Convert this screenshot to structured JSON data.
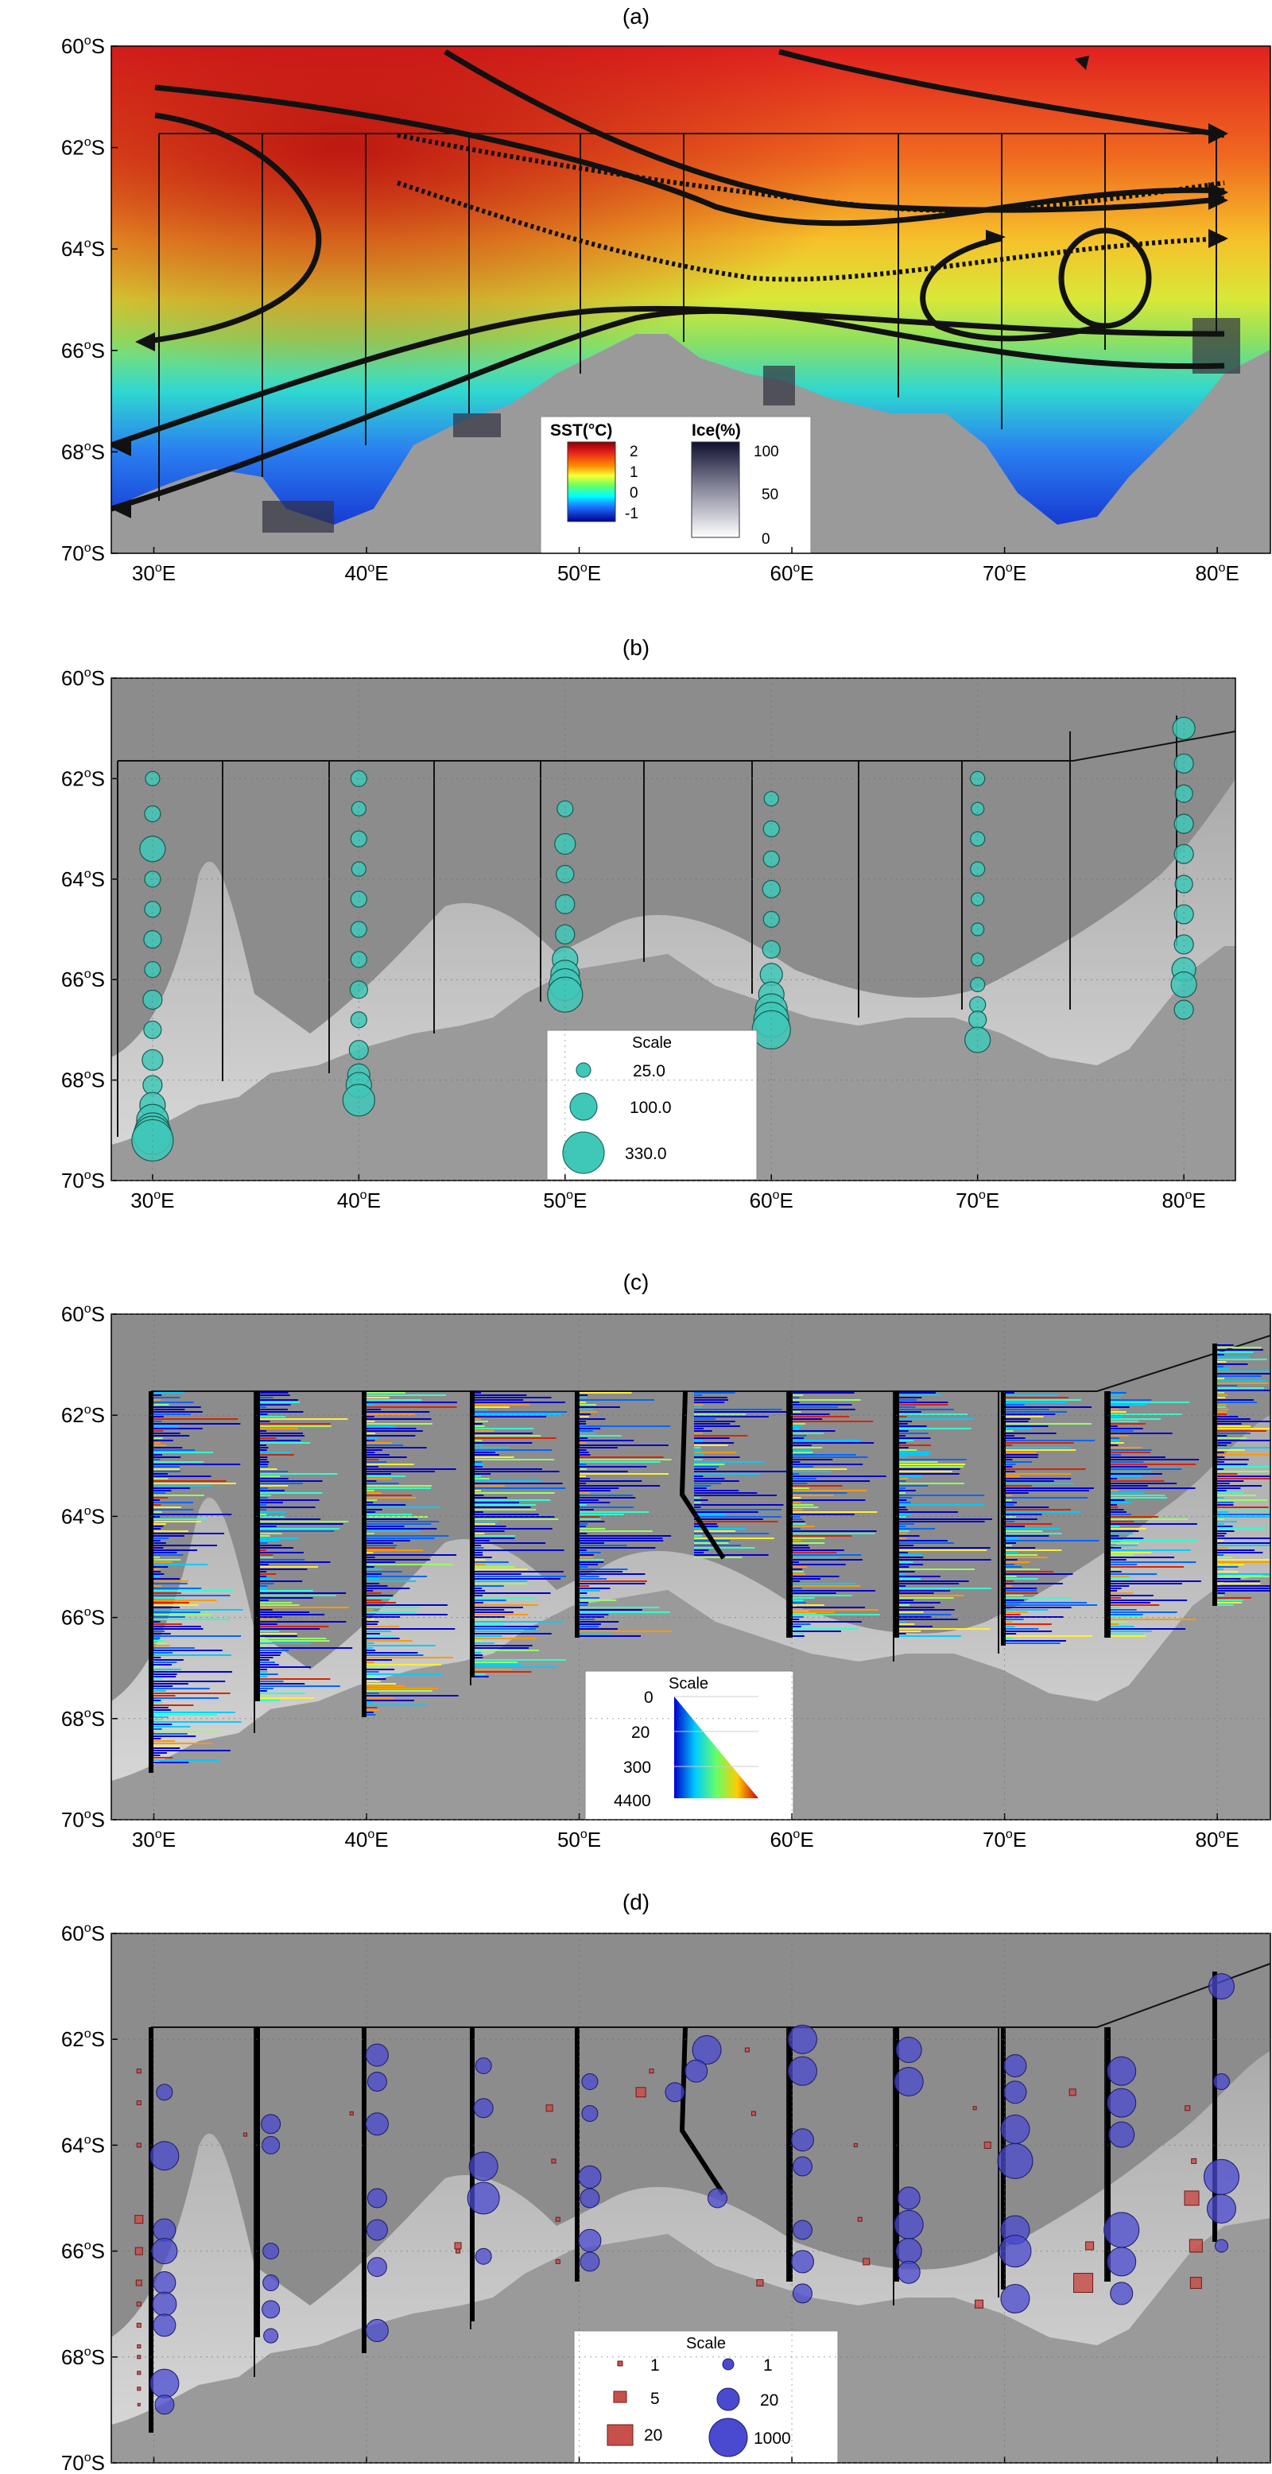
{
  "colors": {
    "ocean_grey": "#8c8c8c",
    "shelf_light": "#d8d8d8",
    "land_grey": "#9a9a9a",
    "circle_teal": "#3fc8b8",
    "circle_blue": "#4a4ad0",
    "square_red": "#c8504a",
    "track_line": "#111111"
  },
  "axes": {
    "x_ticks": [
      "30",
      "40",
      "50",
      "60",
      "70",
      "80"
    ],
    "y_ticks": [
      "60",
      "62",
      "64",
      "66",
      "68",
      "70"
    ],
    "x_suffix": "E",
    "y_suffix": "S",
    "deg": "o"
  },
  "panels": [
    {
      "tag": "(a)",
      "legend": {
        "sst_title": "SST(°C)",
        "sst_ticks": [
          "2",
          "1",
          "0",
          "-1"
        ],
        "ice_title": "Ice(%)",
        "ice_ticks": [
          "100",
          "50",
          "0"
        ]
      }
    },
    {
      "tag": "(b)",
      "legend": {
        "title": "Scale",
        "items": [
          "25.0",
          "100.0",
          "330.0"
        ]
      },
      "stations": [
        {
          "lon": 30,
          "lats": [
            62,
            62.7,
            63.4,
            64.0,
            64.6,
            65.2,
            65.8,
            66.4,
            67.0,
            67.6,
            68.1,
            68.5,
            68.8,
            69.0,
            69.1,
            69.2
          ],
          "r": [
            9,
            10,
            16,
            10,
            10,
            11,
            10,
            12,
            11,
            13,
            12,
            16,
            20,
            22,
            24,
            26
          ]
        },
        {
          "lon": 40,
          "lats": [
            62,
            62.6,
            63.2,
            63.8,
            64.4,
            65.0,
            65.6,
            66.2,
            66.8,
            67.4,
            67.9,
            68.1,
            68.4
          ],
          "r": [
            10,
            9,
            10,
            9,
            10,
            10,
            10,
            11,
            10,
            12,
            14,
            16,
            20
          ]
        },
        {
          "lon": 50,
          "lats": [
            62.6,
            63.3,
            63.9,
            64.5,
            65.1,
            65.6,
            65.9,
            66.1,
            66.3
          ],
          "r": [
            10,
            13,
            11,
            12,
            12,
            16,
            18,
            20,
            22
          ]
        },
        {
          "lon": 60,
          "lats": [
            62.4,
            63.0,
            63.6,
            64.2,
            64.8,
            65.4,
            65.9,
            66.3,
            66.6,
            66.8,
            67.0
          ],
          "r": [
            9,
            10,
            10,
            11,
            10,
            11,
            14,
            16,
            20,
            22,
            24
          ]
        },
        {
          "lon": 70,
          "lats": [
            62.0,
            62.6,
            63.2,
            63.8,
            64.4,
            65.0,
            65.6,
            66.1,
            66.5,
            66.8,
            67.2
          ],
          "r": [
            9,
            8,
            9,
            9,
            8,
            8,
            8,
            9,
            10,
            11,
            16
          ]
        },
        {
          "lon": 80,
          "lats": [
            61.0,
            61.7,
            62.3,
            62.9,
            63.5,
            64.1,
            64.7,
            65.3,
            65.8,
            66.1,
            66.6
          ],
          "r": [
            14,
            12,
            11,
            12,
            12,
            11,
            12,
            12,
            15,
            16,
            12
          ]
        }
      ]
    },
    {
      "tag": "(c)",
      "legend": {
        "title": "Scale",
        "items": [
          "0",
          "20",
          "300",
          "4400"
        ]
      }
    },
    {
      "tag": "(d)",
      "legend": {
        "title": "Scale",
        "square_items": [
          "1",
          "5",
          "20"
        ],
        "circle_items": [
          "1",
          "20",
          "1000"
        ]
      },
      "circles": [
        {
          "lon": 30.5,
          "lat": 63.0,
          "r": 10
        },
        {
          "lon": 30.5,
          "lat": 64.2,
          "r": 18
        },
        {
          "lon": 30.5,
          "lat": 65.6,
          "r": 14
        },
        {
          "lon": 30.5,
          "lat": 66.0,
          "r": 16
        },
        {
          "lon": 30.5,
          "lat": 66.6,
          "r": 14
        },
        {
          "lon": 30.5,
          "lat": 67.0,
          "r": 15
        },
        {
          "lon": 30.5,
          "lat": 67.4,
          "r": 14
        },
        {
          "lon": 30.5,
          "lat": 68.5,
          "r": 18
        },
        {
          "lon": 30.5,
          "lat": 68.9,
          "r": 12
        },
        {
          "lon": 35.5,
          "lat": 63.6,
          "r": 12
        },
        {
          "lon": 35.5,
          "lat": 64.0,
          "r": 11
        },
        {
          "lon": 35.5,
          "lat": 66.0,
          "r": 10
        },
        {
          "lon": 35.5,
          "lat": 66.6,
          "r": 10
        },
        {
          "lon": 35.5,
          "lat": 67.1,
          "r": 11
        },
        {
          "lon": 35.5,
          "lat": 67.6,
          "r": 9
        },
        {
          "lon": 40.5,
          "lat": 62.3,
          "r": 14
        },
        {
          "lon": 40.5,
          "lat": 62.8,
          "r": 12
        },
        {
          "lon": 40.5,
          "lat": 63.6,
          "r": 14
        },
        {
          "lon": 40.5,
          "lat": 65.0,
          "r": 12
        },
        {
          "lon": 40.5,
          "lat": 65.6,
          "r": 13
        },
        {
          "lon": 40.5,
          "lat": 66.3,
          "r": 12
        },
        {
          "lon": 40.5,
          "lat": 67.5,
          "r": 14
        },
        {
          "lon": 45.5,
          "lat": 62.5,
          "r": 10
        },
        {
          "lon": 45.5,
          "lat": 63.3,
          "r": 12
        },
        {
          "lon": 45.5,
          "lat": 64.4,
          "r": 18
        },
        {
          "lon": 45.5,
          "lat": 65.0,
          "r": 20
        },
        {
          "lon": 45.5,
          "lat": 66.1,
          "r": 10
        },
        {
          "lon": 50.5,
          "lat": 62.8,
          "r": 10
        },
        {
          "lon": 50.5,
          "lat": 63.4,
          "r": 10
        },
        {
          "lon": 50.5,
          "lat": 64.6,
          "r": 14
        },
        {
          "lon": 50.5,
          "lat": 65.0,
          "r": 12
        },
        {
          "lon": 50.5,
          "lat": 65.8,
          "r": 14
        },
        {
          "lon": 50.5,
          "lat": 66.2,
          "r": 12
        },
        {
          "lon": 56.0,
          "lat": 62.2,
          "r": 18
        },
        {
          "lon": 55.5,
          "lat": 62.6,
          "r": 14
        },
        {
          "lon": 54.5,
          "lat": 63.0,
          "r": 12
        },
        {
          "lon": 56.5,
          "lat": 65.0,
          "r": 12
        },
        {
          "lon": 60.5,
          "lat": 62.0,
          "r": 18
        },
        {
          "lon": 60.5,
          "lat": 62.6,
          "r": 18
        },
        {
          "lon": 60.5,
          "lat": 63.9,
          "r": 14
        },
        {
          "lon": 60.5,
          "lat": 64.4,
          "r": 12
        },
        {
          "lon": 60.5,
          "lat": 65.6,
          "r": 12
        },
        {
          "lon": 60.5,
          "lat": 66.2,
          "r": 14
        },
        {
          "lon": 60.5,
          "lat": 66.8,
          "r": 12
        },
        {
          "lon": 65.5,
          "lat": 62.2,
          "r": 16
        },
        {
          "lon": 65.5,
          "lat": 62.8,
          "r": 18
        },
        {
          "lon": 65.5,
          "lat": 65.0,
          "r": 14
        },
        {
          "lon": 65.5,
          "lat": 65.5,
          "r": 18
        },
        {
          "lon": 65.5,
          "lat": 66.0,
          "r": 16
        },
        {
          "lon": 65.5,
          "lat": 66.4,
          "r": 14
        },
        {
          "lon": 70.5,
          "lat": 62.5,
          "r": 14
        },
        {
          "lon": 70.5,
          "lat": 63.0,
          "r": 14
        },
        {
          "lon": 70.5,
          "lat": 63.7,
          "r": 18
        },
        {
          "lon": 70.5,
          "lat": 64.3,
          "r": 22
        },
        {
          "lon": 70.5,
          "lat": 65.6,
          "r": 18
        },
        {
          "lon": 70.5,
          "lat": 66.0,
          "r": 20
        },
        {
          "lon": 70.5,
          "lat": 66.9,
          "r": 18
        },
        {
          "lon": 75.5,
          "lat": 62.6,
          "r": 18
        },
        {
          "lon": 75.5,
          "lat": 63.2,
          "r": 18
        },
        {
          "lon": 75.5,
          "lat": 63.8,
          "r": 16
        },
        {
          "lon": 75.5,
          "lat": 65.6,
          "r": 22
        },
        {
          "lon": 75.5,
          "lat": 66.2,
          "r": 18
        },
        {
          "lon": 75.5,
          "lat": 66.8,
          "r": 14
        },
        {
          "lon": 80.2,
          "lat": 61.0,
          "r": 16
        },
        {
          "lon": 80.2,
          "lat": 62.8,
          "r": 10
        },
        {
          "lon": 80.2,
          "lat": 64.6,
          "r": 22
        },
        {
          "lon": 80.2,
          "lat": 65.2,
          "r": 18
        },
        {
          "lon": 80.2,
          "lat": 65.9,
          "r": 8
        }
      ],
      "squares": [
        {
          "lon": 29.3,
          "lat": 62.6,
          "s": 5
        },
        {
          "lon": 29.3,
          "lat": 63.2,
          "s": 5
        },
        {
          "lon": 29.3,
          "lat": 64.0,
          "s": 5
        },
        {
          "lon": 29.3,
          "lat": 65.4,
          "s": 10
        },
        {
          "lon": 29.3,
          "lat": 66.0,
          "s": 9
        },
        {
          "lon": 29.3,
          "lat": 66.6,
          "s": 7
        },
        {
          "lon": 29.3,
          "lat": 67.0,
          "s": 5
        },
        {
          "lon": 29.3,
          "lat": 67.4,
          "s": 5
        },
        {
          "lon": 29.3,
          "lat": 67.8,
          "s": 4
        },
        {
          "lon": 29.3,
          "lat": 68.0,
          "s": 4
        },
        {
          "lon": 29.3,
          "lat": 68.3,
          "s": 4
        },
        {
          "lon": 29.3,
          "lat": 68.6,
          "s": 4
        },
        {
          "lon": 29.3,
          "lat": 68.9,
          "s": 3
        },
        {
          "lon": 34.3,
          "lat": 63.8,
          "s": 4
        },
        {
          "lon": 39.3,
          "lat": 63.4,
          "s": 4
        },
        {
          "lon": 44.3,
          "lat": 65.9,
          "s": 8
        },
        {
          "lon": 44.3,
          "lat": 66.0,
          "s": 5
        },
        {
          "lon": 48.6,
          "lat": 63.3,
          "s": 8
        },
        {
          "lon": 48.8,
          "lat": 64.3,
          "s": 5
        },
        {
          "lon": 49.0,
          "lat": 65.4,
          "s": 5
        },
        {
          "lon": 49.0,
          "lat": 66.2,
          "s": 5
        },
        {
          "lon": 52.9,
          "lat": 63.0,
          "s": 12
        },
        {
          "lon": 53.4,
          "lat": 62.6,
          "s": 5
        },
        {
          "lon": 57.9,
          "lat": 62.2,
          "s": 5
        },
        {
          "lon": 58.2,
          "lat": 63.4,
          "s": 5
        },
        {
          "lon": 58.5,
          "lat": 66.6,
          "s": 8
        },
        {
          "lon": 63.0,
          "lat": 64.0,
          "s": 4
        },
        {
          "lon": 63.2,
          "lat": 65.4,
          "s": 5
        },
        {
          "lon": 63.5,
          "lat": 66.2,
          "s": 8
        },
        {
          "lon": 68.6,
          "lat": 63.3,
          "s": 4
        },
        {
          "lon": 68.8,
          "lat": 67.0,
          "s": 10
        },
        {
          "lon": 69.2,
          "lat": 64.0,
          "s": 8
        },
        {
          "lon": 73.2,
          "lat": 63.0,
          "s": 8
        },
        {
          "lon": 73.7,
          "lat": 66.6,
          "s": 24
        },
        {
          "lon": 74.0,
          "lat": 65.9,
          "s": 10
        },
        {
          "lon": 78.6,
          "lat": 63.3,
          "s": 6
        },
        {
          "lon": 78.8,
          "lat": 65.0,
          "s": 18
        },
        {
          "lon": 79.0,
          "lat": 65.9,
          "s": 16
        },
        {
          "lon": 79.0,
          "lat": 66.6,
          "s": 14
        },
        {
          "lon": 78.9,
          "lat": 64.3,
          "s": 6
        }
      ]
    }
  ]
}
